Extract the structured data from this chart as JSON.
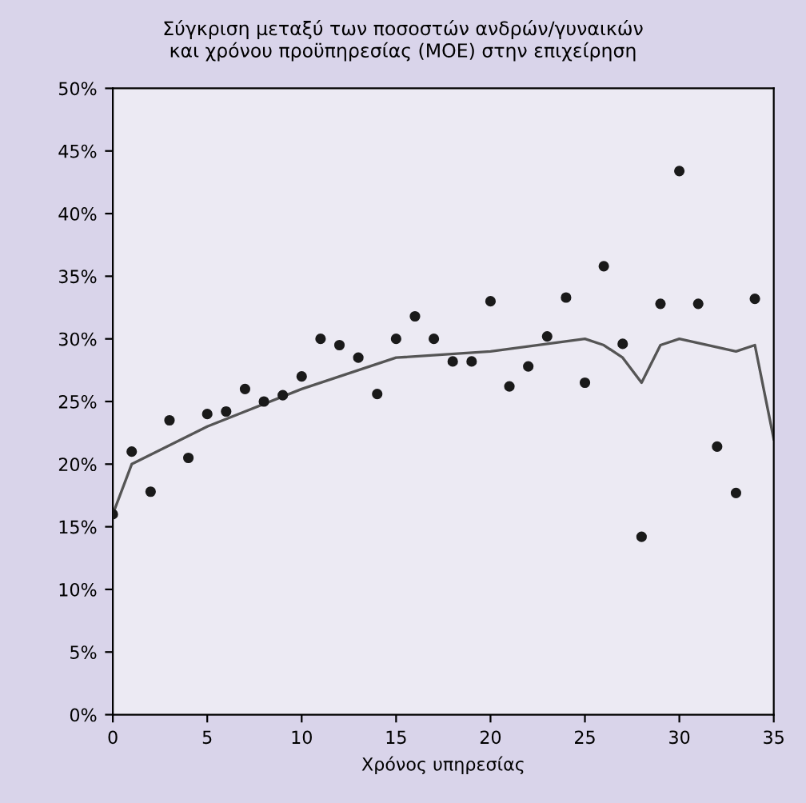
{
  "chart_data": {
    "type": "scatter",
    "title": "Σύγκριση μεταξύ των ποσοστών ανδρών/γυναικών\nκαι χρόνου προϋπηρεσίας (ΜΟΕ) στην επιχείρηση",
    "xlabel": "Χρόνος υπηρεσίας",
    "x": [
      0,
      1,
      2,
      3,
      4,
      5,
      6,
      7,
      8,
      9,
      10,
      11,
      12,
      13,
      14,
      15,
      16,
      17,
      18,
      19,
      20,
      21,
      22,
      23,
      24,
      25,
      26,
      27,
      28,
      29,
      30,
      31,
      32,
      33,
      34
    ],
    "series": [
      {
        "color": "#1a1a1a",
        "marker": "circle",
        "values": [
          16,
          21,
          17.8,
          23.5,
          20.5,
          24,
          24.2,
          26,
          25,
          25.5,
          27,
          30,
          29.5,
          28.5,
          25.6,
          30,
          31.8,
          30,
          28.2,
          28.2,
          33,
          26.2,
          27.8,
          30.2,
          33.3,
          26.5,
          35.8,
          29.6,
          14.2,
          32.8,
          43.4,
          32.8,
          21.4,
          17.7,
          33.2
        ]
      },
      {
        "type": "line",
        "color": "#555555",
        "marker": "none",
        "x": [
          0,
          1,
          5,
          10,
          15,
          20,
          25,
          26,
          27,
          28,
          29,
          30,
          33,
          34,
          35
        ],
        "values": [
          16,
          20,
          23,
          26,
          28.5,
          29,
          30,
          29.5,
          28.5,
          26.5,
          29.5,
          30,
          29,
          29.5,
          22
        ]
      }
    ],
    "xlim": [
      0,
      35
    ],
    "xticks": [
      0,
      5,
      10,
      15,
      20,
      25,
      30,
      35
    ],
    "ylim": [
      0,
      50
    ],
    "yticks": [
      {
        "value": 0,
        "label": "0%"
      },
      {
        "value": 5,
        "label": "5%"
      },
      {
        "value": 10,
        "label": "10%"
      },
      {
        "value": 15,
        "label": "15%"
      },
      {
        "value": 20,
        "label": "20%"
      },
      {
        "value": 25,
        "label": "25%"
      },
      {
        "value": 30,
        "label": "30%"
      },
      {
        "value": 35,
        "label": "35%"
      },
      {
        "value": 40,
        "label": "40%"
      },
      {
        "value": 45,
        "label": "45%"
      },
      {
        "value": 50,
        "label": "50%"
      }
    ],
    "grid": false,
    "legend": false
  }
}
